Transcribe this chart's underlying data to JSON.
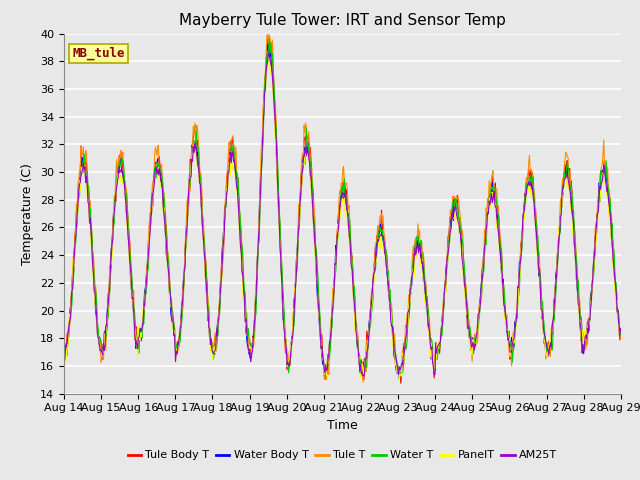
{
  "title": "Mayberry Tule Tower: IRT and Sensor Temp",
  "xlabel": "Time",
  "ylabel": "Temperature (C)",
  "ylim": [
    14,
    40
  ],
  "yticks": [
    14,
    16,
    18,
    20,
    22,
    24,
    26,
    28,
    30,
    32,
    34,
    36,
    38,
    40
  ],
  "xtick_labels": [
    "Aug 14",
    "Aug 15",
    "Aug 16",
    "Aug 17",
    "Aug 18",
    "Aug 19",
    "Aug 20",
    "Aug 21",
    "Aug 22",
    "Aug 23",
    "Aug 24",
    "Aug 25",
    "Aug 26",
    "Aug 27",
    "Aug 28",
    "Aug 29"
  ],
  "annotation_text": "MB_tule",
  "annotation_color": "#8B0000",
  "annotation_bg": "#FFFF99",
  "annotation_border": "#AAAA00",
  "series": [
    {
      "label": "Tule Body T",
      "color": "#FF0000"
    },
    {
      "label": "Water Body T",
      "color": "#0000FF"
    },
    {
      "label": "Tule T",
      "color": "#FF8C00"
    },
    {
      "label": "Water T",
      "color": "#00CC00"
    },
    {
      "label": "PanelT",
      "color": "#FFFF00"
    },
    {
      "label": "AM25T",
      "color": "#9900CC"
    }
  ],
  "fig_bg": "#E8E8E8",
  "ax_bg": "#E8E8E8",
  "grid_color": "#FFFFFF",
  "title_fontsize": 11,
  "label_fontsize": 9,
  "tick_fontsize": 8,
  "legend_fontsize": 8,
  "line_width": 0.8,
  "n_days": 15,
  "pts_per_day": 48
}
